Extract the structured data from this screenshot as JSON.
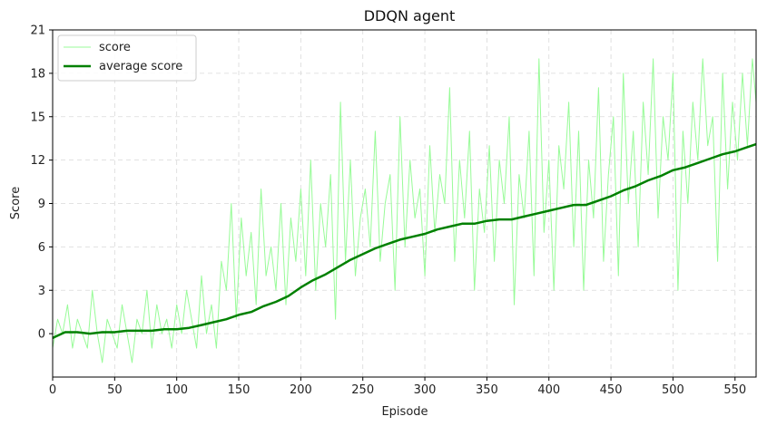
{
  "chart_data": {
    "type": "line",
    "title": "DDQN agent",
    "xlabel": "Episode",
    "ylabel": "Score",
    "xlim": [
      0,
      567
    ],
    "ylim": [
      -3,
      21
    ],
    "xticks": [
      0,
      50,
      100,
      150,
      200,
      250,
      300,
      350,
      400,
      450,
      500,
      550
    ],
    "yticks": [
      0,
      3,
      6,
      9,
      12,
      15,
      18,
      21
    ],
    "grid": true,
    "legend_position": "top-left",
    "series": [
      {
        "name": "score",
        "color": "#98fb98",
        "style": "thin",
        "x": [
          0,
          4,
          8,
          12,
          16,
          20,
          24,
          28,
          32,
          36,
          40,
          44,
          48,
          52,
          56,
          60,
          64,
          68,
          72,
          76,
          80,
          84,
          88,
          92,
          96,
          100,
          104,
          108,
          112,
          116,
          120,
          124,
          128,
          132,
          136,
          140,
          144,
          148,
          152,
          156,
          160,
          164,
          168,
          172,
          176,
          180,
          184,
          188,
          192,
          196,
          200,
          204,
          208,
          212,
          216,
          220,
          224,
          228,
          232,
          236,
          240,
          244,
          248,
          252,
          256,
          260,
          264,
          268,
          272,
          276,
          280,
          284,
          288,
          292,
          296,
          300,
          304,
          308,
          312,
          316,
          320,
          324,
          328,
          332,
          336,
          340,
          344,
          348,
          352,
          356,
          360,
          364,
          368,
          372,
          376,
          380,
          384,
          388,
          392,
          396,
          400,
          404,
          408,
          412,
          416,
          420,
          424,
          428,
          432,
          436,
          440,
          444,
          448,
          452,
          456,
          460,
          464,
          468,
          472,
          476,
          480,
          484,
          488,
          492,
          496,
          500,
          504,
          508,
          512,
          516,
          520,
          524,
          528,
          532,
          536,
          540,
          544,
          548,
          552,
          556,
          560,
          564,
          567
        ],
        "y": [
          -1,
          1,
          0,
          2,
          -1,
          1,
          0,
          -1,
          3,
          0,
          -2,
          1,
          0,
          -1,
          2,
          0,
          -2,
          1,
          0,
          3,
          -1,
          2,
          0,
          1,
          -1,
          2,
          0,
          3,
          1,
          -1,
          4,
          0,
          2,
          -1,
          5,
          3,
          9,
          1,
          8,
          4,
          7,
          2,
          10,
          4,
          6,
          3,
          9,
          2,
          8,
          5,
          10,
          4,
          12,
          3,
          9,
          6,
          11,
          1,
          16,
          5,
          12,
          4,
          8,
          10,
          6,
          14,
          5,
          9,
          11,
          3,
          15,
          6,
          12,
          8,
          10,
          4,
          13,
          7,
          11,
          9,
          17,
          5,
          12,
          8,
          14,
          3,
          10,
          7,
          13,
          5,
          12,
          9,
          15,
          2,
          11,
          8,
          14,
          4,
          19,
          7,
          12,
          3,
          13,
          10,
          16,
          6,
          14,
          3,
          12,
          8,
          17,
          5,
          11,
          15,
          4,
          18,
          9,
          14,
          6,
          16,
          11,
          19,
          8,
          15,
          12,
          18,
          3,
          14,
          9,
          16,
          12,
          19,
          13,
          15,
          5,
          18,
          10,
          16,
          12,
          18,
          13,
          19,
          16
        ]
      },
      {
        "name": "average score",
        "color": "#008000",
        "style": "thick",
        "x": [
          0,
          10,
          20,
          30,
          40,
          50,
          60,
          70,
          80,
          90,
          100,
          110,
          120,
          130,
          140,
          150,
          160,
          170,
          180,
          190,
          200,
          210,
          220,
          230,
          240,
          250,
          260,
          270,
          280,
          290,
          300,
          310,
          320,
          330,
          340,
          350,
          360,
          370,
          380,
          390,
          400,
          410,
          420,
          430,
          440,
          450,
          460,
          470,
          480,
          490,
          500,
          510,
          520,
          530,
          540,
          550,
          560,
          567
        ],
        "y": [
          -0.3,
          0.1,
          0.1,
          0.0,
          0.1,
          0.1,
          0.2,
          0.2,
          0.2,
          0.3,
          0.3,
          0.4,
          0.6,
          0.8,
          1.0,
          1.3,
          1.5,
          1.9,
          2.2,
          2.6,
          3.2,
          3.7,
          4.1,
          4.6,
          5.1,
          5.5,
          5.9,
          6.2,
          6.5,
          6.7,
          6.9,
          7.2,
          7.4,
          7.6,
          7.6,
          7.8,
          7.9,
          7.9,
          8.1,
          8.3,
          8.5,
          8.7,
          8.9,
          8.9,
          9.2,
          9.5,
          9.9,
          10.2,
          10.6,
          10.9,
          11.3,
          11.5,
          11.8,
          12.1,
          12.4,
          12.6,
          12.9,
          13.1
        ]
      }
    ]
  }
}
